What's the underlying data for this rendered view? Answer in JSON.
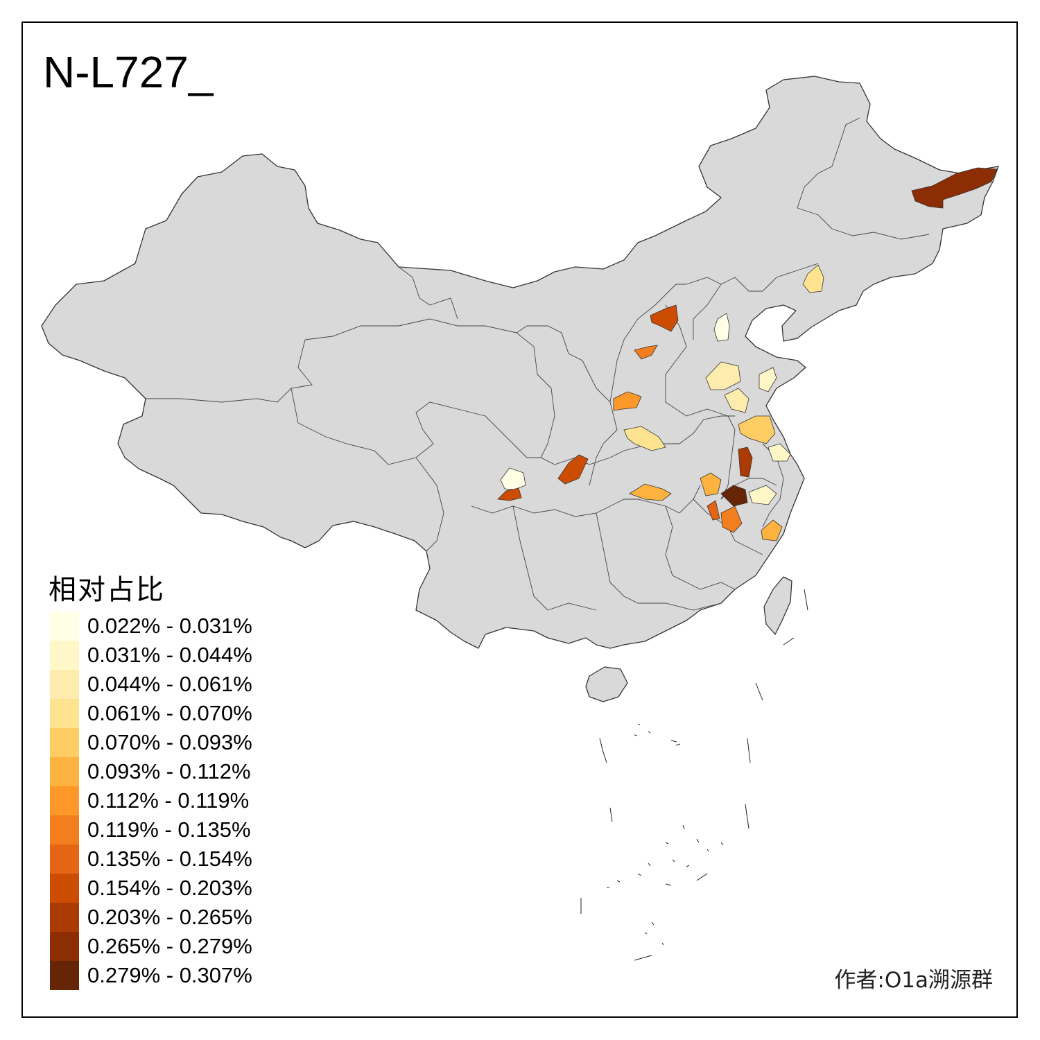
{
  "map": {
    "title": "N-L727_",
    "legend_title": "相对占比",
    "author": "作者:O1a溯源群",
    "base_color": "#d9d9d9",
    "border_color": "#333333",
    "legend": [
      {
        "label": "0.022% - 0.031%",
        "color": "#ffffe5"
      },
      {
        "label": "0.031% - 0.044%",
        "color": "#fff7c8"
      },
      {
        "label": "0.044% - 0.061%",
        "color": "#feecae"
      },
      {
        "label": "0.061% - 0.070%",
        "color": "#fee391"
      },
      {
        "label": "0.070% - 0.093%",
        "color": "#fece65"
      },
      {
        "label": "0.093% - 0.112%",
        "color": "#feb23f"
      },
      {
        "label": "0.112% - 0.119%",
        "color": "#fe9929"
      },
      {
        "label": "0.119% - 0.135%",
        "color": "#f27e1d"
      },
      {
        "label": "0.135% - 0.154%",
        "color": "#e56514"
      },
      {
        "label": "0.154% - 0.203%",
        "color": "#cc4c02"
      },
      {
        "label": "0.203% - 0.265%",
        "color": "#aa3c03"
      },
      {
        "label": "0.265% - 0.279%",
        "color": "#8c2d04"
      },
      {
        "label": "0.279% - 0.307%",
        "color": "#662506"
      }
    ],
    "regions": [
      {
        "name": "heilongjiang-east",
        "class": 11
      },
      {
        "name": "jilin-central",
        "class": 3
      },
      {
        "name": "beijing",
        "class": 0
      },
      {
        "name": "inner-mongolia-hohhot",
        "class": 9
      },
      {
        "name": "shanxi-north",
        "class": 7
      },
      {
        "name": "shanxi-south",
        "class": 6
      },
      {
        "name": "henan-west",
        "class": 3
      },
      {
        "name": "hebei-south",
        "class": 2
      },
      {
        "name": "shandong-west",
        "class": 2
      },
      {
        "name": "shandong-east",
        "class": 1
      },
      {
        "name": "jiangsu-north",
        "class": 4
      },
      {
        "name": "jiangsu-south",
        "class": 1
      },
      {
        "name": "anhui-north",
        "class": 10
      },
      {
        "name": "anhui-south",
        "class": 5
      },
      {
        "name": "anhui-hefei",
        "class": 12
      },
      {
        "name": "zhejiang-north",
        "class": 1
      },
      {
        "name": "zhejiang-south",
        "class": 5
      },
      {
        "name": "jiangxi-north",
        "class": 7
      },
      {
        "name": "jiangxi-west",
        "class": 8
      },
      {
        "name": "hubei-central",
        "class": 5
      },
      {
        "name": "shaanxi-hanzhong",
        "class": 9
      },
      {
        "name": "sichuan-aba",
        "class": 0
      },
      {
        "name": "sichuan-yaan",
        "class": 9
      }
    ]
  }
}
